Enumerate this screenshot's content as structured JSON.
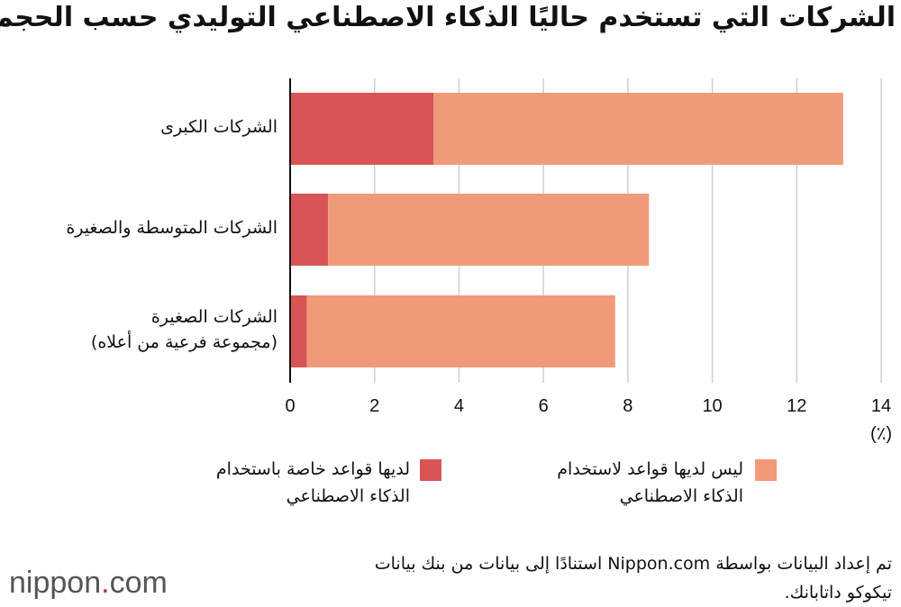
{
  "chart_data": {
    "type": "bar",
    "orientation": "horizontal",
    "stacked": true,
    "title": "الشركات التي تستخدم حاليًا الذكاء الاصطناعي التوليدي حسب الحجم",
    "categories": [
      "الشركات الكبرى",
      "الشركات المتوسطة والصغيرة",
      "الشركات الصغيرة\n(مجموعة فرعية من أعلاه)"
    ],
    "series": [
      {
        "name": "لديها قواعد خاصة باستخدام\nالذكاء الاصطناعي",
        "color": "#d95555",
        "values": [
          3.4,
          0.9,
          0.4
        ]
      },
      {
        "name": "ليس لديها قواعد لاستخدام\nالذكاء الاصطناعي",
        "color": "#f19a7a",
        "values": [
          9.7,
          7.6,
          7.3
        ]
      }
    ],
    "xlim": [
      0,
      14
    ],
    "xticks": [
      "0",
      "2",
      "4",
      "6",
      "8",
      "10",
      "12",
      "14"
    ],
    "xunit": "(٪)",
    "grid": true,
    "legend": "bottom"
  },
  "source": "تم إعداد البيانات بواسطة Nippon.com استنادًا إلى بيانات من بنك بيانات\nتيكوكو داتابانك.",
  "logo": {
    "text": "nippon",
    "dot": ".",
    "suffix": "com"
  }
}
